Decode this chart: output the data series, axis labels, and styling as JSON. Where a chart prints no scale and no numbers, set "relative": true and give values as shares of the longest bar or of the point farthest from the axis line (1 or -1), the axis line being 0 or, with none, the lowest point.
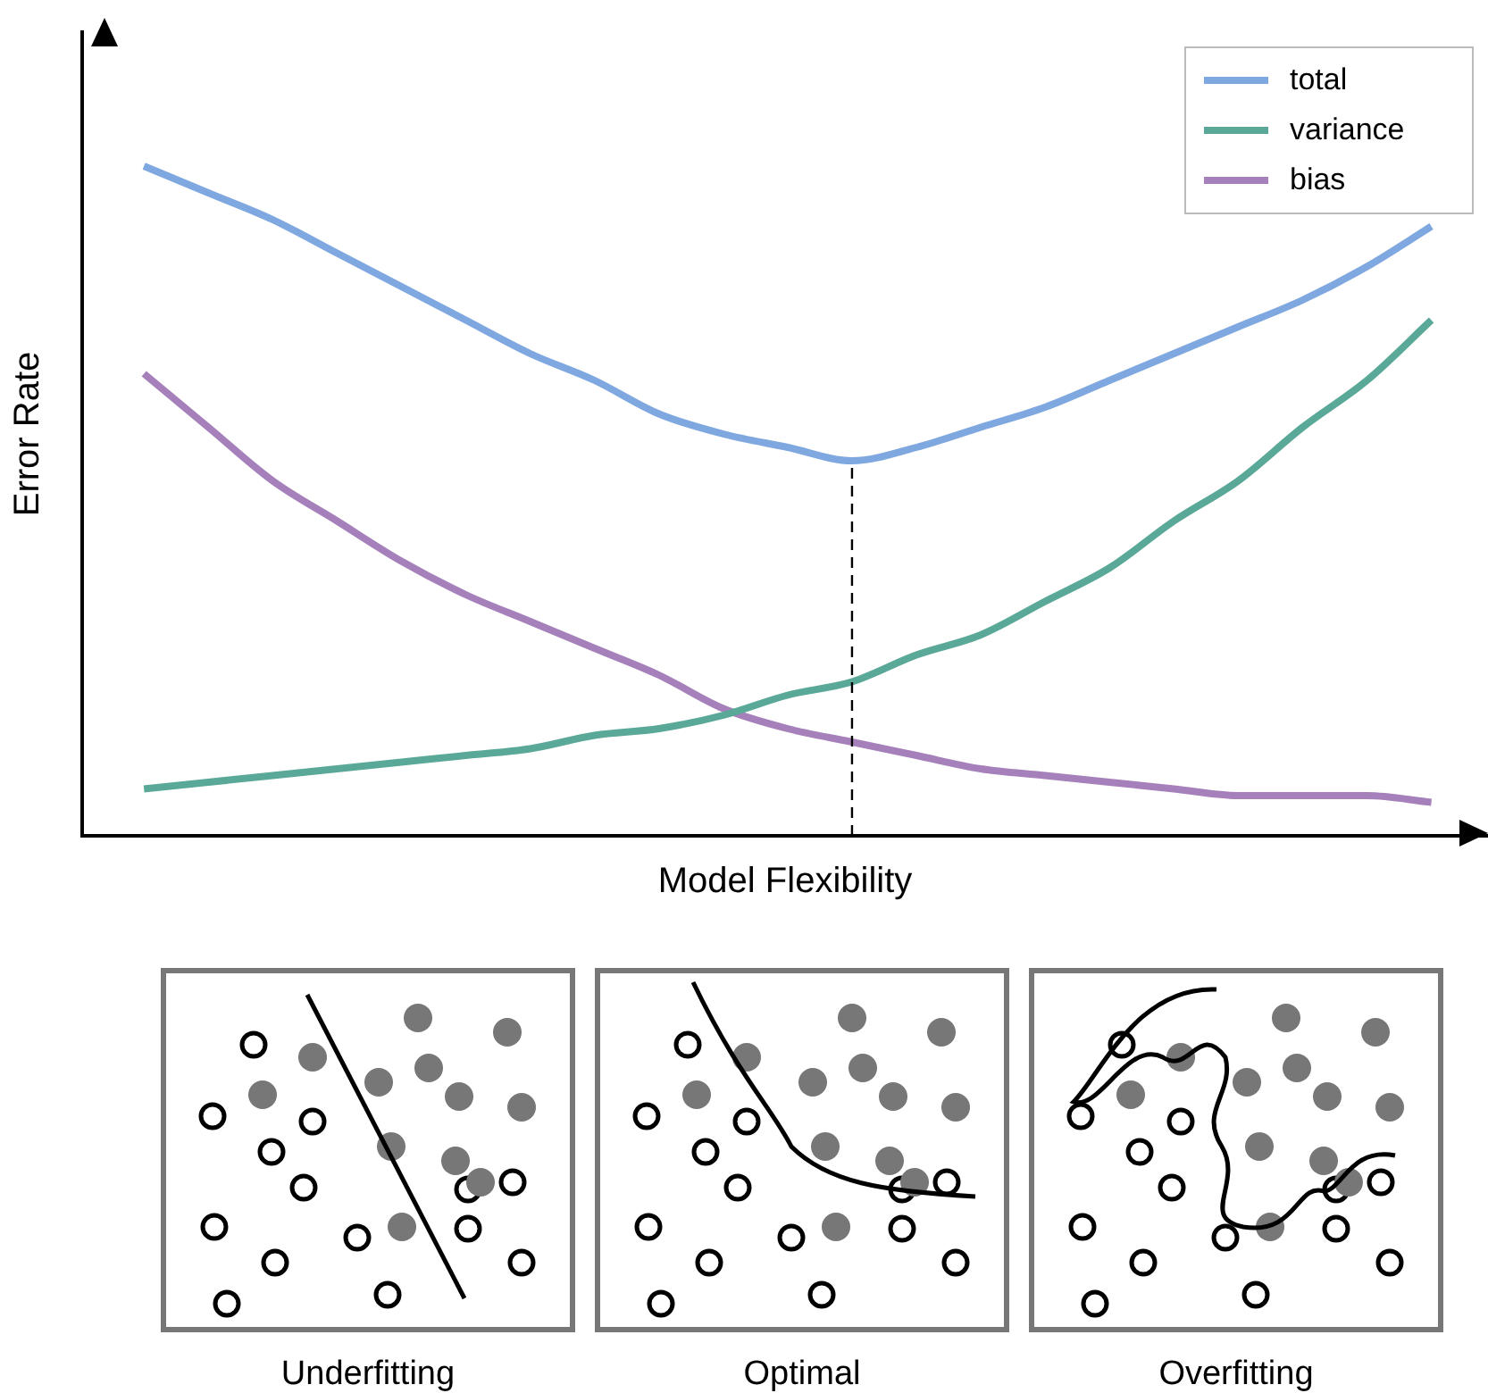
{
  "chart_data": {
    "type": "line",
    "xlabel": "Model Flexibility",
    "ylabel": "Error Rate",
    "relative": true,
    "legend": "top right",
    "grid": false,
    "marker": "none",
    "categories": [
      null,
      null,
      null,
      null,
      null,
      null,
      null,
      null,
      null,
      null,
      null,
      null,
      null,
      null,
      null,
      null,
      null,
      null,
      null,
      null,
      null
    ],
    "series": [
      {
        "name": "total",
        "color": "#7fa7e0",
        "values": [
          1.0,
          0.96,
          0.92,
          0.87,
          0.82,
          0.77,
          0.72,
          0.68,
          0.63,
          0.6,
          0.58,
          0.56,
          0.58,
          0.61,
          0.64,
          0.68,
          0.72,
          0.76,
          0.8,
          0.85,
          0.91
        ]
      },
      {
        "name": "variance",
        "color": "#5aa897",
        "values": [
          0.07,
          0.08,
          0.09,
          0.1,
          0.11,
          0.12,
          0.13,
          0.15,
          0.16,
          0.18,
          0.21,
          0.23,
          0.27,
          0.3,
          0.35,
          0.4,
          0.47,
          0.53,
          0.61,
          0.68,
          0.77
        ]
      },
      {
        "name": "bias",
        "color": "#a680bb",
        "values": [
          0.69,
          0.61,
          0.53,
          0.47,
          0.41,
          0.36,
          0.32,
          0.28,
          0.24,
          0.19,
          0.16,
          0.14,
          0.12,
          0.1,
          0.09,
          0.08,
          0.07,
          0.06,
          0.06,
          0.06,
          0.05
        ]
      }
    ],
    "annotations": [
      "Underfitting",
      "Optimal",
      "Overfitting"
    ]
  }
}
